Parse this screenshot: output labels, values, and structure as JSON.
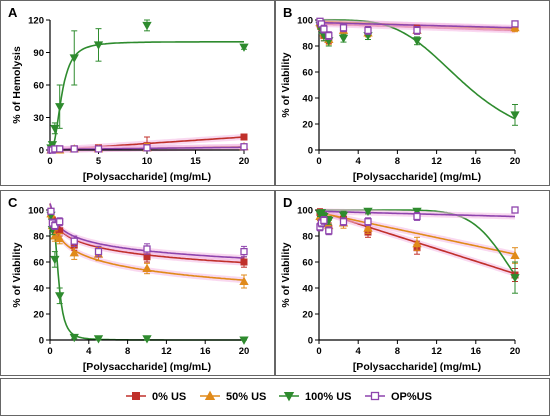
{
  "colors": {
    "us0": "#c0302b",
    "us50": "#e08a1a",
    "us100": "#2e8b2e",
    "op": "#8e44ad",
    "band": "#f4b8e4"
  },
  "legend": [
    {
      "key": "us0",
      "label": "0% US",
      "marker": "square"
    },
    {
      "key": "us50",
      "label": "50% US",
      "marker": "triangle-up"
    },
    {
      "key": "us100",
      "label": "100% US",
      "marker": "triangle-down"
    },
    {
      "key": "op",
      "label": "OP%US",
      "marker": "open-square"
    }
  ],
  "chart_data": [
    {
      "panel": "A",
      "type": "scatter",
      "xlabel": "[Polysaccharide] (mg/mL)",
      "ylabel": "% of Hemolysis",
      "xlim": [
        0,
        20
      ],
      "ylim": [
        0,
        120
      ],
      "xticks": [
        0,
        5,
        10,
        15,
        20
      ],
      "yticks": [
        0,
        30,
        60,
        90,
        120
      ],
      "series": [
        {
          "name": "0% US",
          "key": "us0",
          "x": [
            0.1,
            0.25,
            0.5,
            1,
            2.5,
            5,
            10,
            20
          ],
          "y": [
            0,
            0,
            0,
            1,
            1,
            2,
            4,
            12
          ],
          "err": [
            0,
            0,
            0,
            1,
            1,
            1,
            8,
            2
          ],
          "fit": {
            "kind": "linear",
            "slope": 0.6,
            "intercept": 0
          }
        },
        {
          "name": "50% US",
          "key": "us50",
          "x": [
            0.1,
            0.25,
            0.5,
            1,
            2.5,
            5,
            10,
            20
          ],
          "y": [
            0,
            0,
            0,
            0,
            1,
            1,
            2,
            3
          ],
          "err": [
            0,
            0,
            0,
            1,
            1,
            1,
            4,
            1
          ],
          "fit": {
            "kind": "linear",
            "slope": 0.15,
            "intercept": 0
          }
        },
        {
          "name": "100% US",
          "key": "us100",
          "x": [
            0.1,
            0.25,
            0.5,
            1,
            2.5,
            5,
            10,
            20
          ],
          "y": [
            2,
            5,
            20,
            40,
            85,
            97,
            115,
            95
          ],
          "err": [
            1,
            2,
            5,
            20,
            25,
            15,
            5,
            2
          ],
          "fit": {
            "kind": "hill",
            "top": 100,
            "ec50": 1.2,
            "n": 2.5
          }
        },
        {
          "name": "OP%US",
          "key": "op",
          "x": [
            0.1,
            0.25,
            0.5,
            1,
            2.5,
            5,
            10,
            20
          ],
          "y": [
            0,
            0,
            1,
            1,
            1,
            1,
            2,
            3
          ],
          "err": [
            0,
            0,
            0,
            0,
            1,
            1,
            1,
            1
          ],
          "fit": {
            "kind": "linear",
            "slope": 0.1,
            "intercept": 0.5
          }
        }
      ]
    },
    {
      "panel": "B",
      "type": "scatter",
      "xlabel": "[Polysaccharide] (mg/mL)",
      "ylabel": "% of Viability",
      "xlim": [
        0,
        20
      ],
      "ylim": [
        0,
        100
      ],
      "xticks": [
        0,
        4,
        8,
        12,
        16,
        20
      ],
      "yticks": [
        0,
        20,
        40,
        60,
        80,
        100
      ],
      "series": [
        {
          "name": "0% US",
          "key": "us0",
          "x": [
            0.1,
            0.25,
            0.5,
            1,
            2.5,
            5,
            10,
            20
          ],
          "y": [
            97,
            95,
            88,
            86,
            93,
            91,
            93,
            96
          ],
          "err": [
            3,
            3,
            4,
            4,
            3,
            3,
            3,
            3
          ],
          "fit": {
            "kind": "linear",
            "slope": -0.25,
            "intercept": 97
          }
        },
        {
          "name": "50% US",
          "key": "us50",
          "x": [
            0.1,
            0.25,
            0.5,
            1,
            2.5,
            5,
            10,
            20
          ],
          "y": [
            98,
            96,
            90,
            85,
            92,
            90,
            92,
            94
          ],
          "err": [
            3,
            3,
            4,
            4,
            3,
            3,
            3,
            3
          ],
          "fit": {
            "kind": "linear",
            "slope": -0.3,
            "intercept": 99
          }
        },
        {
          "name": "100% US",
          "key": "us100",
          "x": [
            0.1,
            0.25,
            0.5,
            1,
            2.5,
            5,
            10,
            20
          ],
          "y": [
            96,
            93,
            88,
            84,
            86,
            88,
            84,
            27
          ],
          "err": [
            3,
            3,
            4,
            4,
            3,
            3,
            3,
            8
          ],
          "fit": {
            "kind": "logistic_down",
            "top": 100,
            "bottom": 0,
            "ec50": 15,
            "n": 4
          }
        },
        {
          "name": "OP%US",
          "key": "op",
          "x": [
            0.1,
            0.25,
            0.5,
            1,
            2.5,
            5,
            10,
            20
          ],
          "y": [
            99,
            97,
            93,
            88,
            94,
            92,
            92,
            97
          ],
          "err": [
            2,
            2,
            3,
            3,
            3,
            3,
            3,
            2
          ],
          "fit": {
            "kind": "linear",
            "slope": -0.2,
            "intercept": 98
          }
        }
      ]
    },
    {
      "panel": "C",
      "type": "scatter",
      "xlabel": "[Polysaccharide] (mg/mL)",
      "ylabel": "% of Viability",
      "xlim": [
        0,
        20
      ],
      "ylim": [
        0,
        100
      ],
      "xticks": [
        0,
        4,
        8,
        12,
        16,
        20
      ],
      "yticks": [
        0,
        20,
        40,
        60,
        80,
        100
      ],
      "series": [
        {
          "name": "0% US",
          "key": "us0",
          "x": [
            0.1,
            0.25,
            0.5,
            1,
            2.5,
            5,
            10,
            20
          ],
          "y": [
            98,
            92,
            85,
            84,
            73,
            68,
            64,
            60
          ],
          "err": [
            3,
            3,
            3,
            4,
            4,
            4,
            4,
            4
          ],
          "fit": {
            "kind": "log",
            "a": 85,
            "b": -8.5
          }
        },
        {
          "name": "50% US",
          "key": "us50",
          "x": [
            0.1,
            0.25,
            0.5,
            1,
            2.5,
            5,
            10,
            20
          ],
          "y": [
            97,
            88,
            80,
            78,
            67,
            66,
            55,
            45
          ],
          "err": [
            3,
            3,
            4,
            4,
            5,
            5,
            4,
            5
          ],
          "fit": {
            "kind": "log",
            "a": 79,
            "b": -11
          }
        },
        {
          "name": "100% US",
          "key": "us100",
          "x": [
            0.1,
            0.25,
            0.5,
            1,
            2.5,
            5,
            10,
            20
          ],
          "y": [
            96,
            85,
            62,
            34,
            2,
            1,
            1,
            0
          ],
          "err": [
            3,
            4,
            6,
            6,
            1,
            1,
            1,
            1
          ],
          "fit": {
            "kind": "logistic_down",
            "top": 100,
            "bottom": 0,
            "ec50": 0.85,
            "n": 3
          }
        },
        {
          "name": "OP%US",
          "key": "op",
          "x": [
            0.1,
            0.25,
            0.5,
            1,
            2.5,
            5,
            10,
            20
          ],
          "y": [
            99,
            90,
            88,
            91,
            76,
            68,
            70,
            68
          ],
          "err": [
            2,
            3,
            3,
            3,
            4,
            4,
            4,
            4
          ],
          "fit": {
            "kind": "log",
            "a": 87,
            "b": -8
          }
        }
      ]
    },
    {
      "panel": "D",
      "type": "scatter",
      "xlabel": "[Polysaccharide] (mg/mL)",
      "ylabel": "% of Viability",
      "xlim": [
        0,
        20
      ],
      "ylim": [
        0,
        100
      ],
      "xticks": [
        0,
        4,
        8,
        12,
        16,
        20
      ],
      "yticks": [
        0,
        20,
        40,
        60,
        80,
        100
      ],
      "series": [
        {
          "name": "0% US",
          "key": "us0",
          "x": [
            0.1,
            0.25,
            0.5,
            1,
            2.5,
            5,
            10,
            20
          ],
          "y": [
            98,
            96,
            94,
            86,
            93,
            83,
            71,
            50
          ],
          "err": [
            3,
            3,
            3,
            4,
            4,
            4,
            5,
            5
          ],
          "fit": {
            "kind": "linear",
            "slope": -2.4,
            "intercept": 99
          }
        },
        {
          "name": "50% US",
          "key": "us50",
          "x": [
            0.1,
            0.25,
            0.5,
            1,
            2.5,
            5,
            10,
            20
          ],
          "y": [
            95,
            94,
            90,
            88,
            90,
            86,
            74,
            65
          ],
          "err": [
            3,
            3,
            3,
            4,
            4,
            4,
            5,
            6
          ],
          "fit": {
            "kind": "linear",
            "slope": -1.6,
            "intercept": 98
          }
        },
        {
          "name": "100% US",
          "key": "us100",
          "x": [
            0.1,
            0.25,
            0.5,
            1,
            2.5,
            5,
            10,
            20
          ],
          "y": [
            97,
            98,
            95,
            92,
            96,
            99,
            99,
            48
          ],
          "err": [
            2,
            2,
            3,
            3,
            3,
            2,
            2,
            12
          ],
          "fit": {
            "kind": "logistic_down",
            "top": 100,
            "bottom": 0,
            "ec50": 20,
            "n": 9
          }
        },
        {
          "name": "OP%US",
          "key": "op",
          "x": [
            0.1,
            0.25,
            0.5,
            1,
            2.5,
            5,
            10,
            20
          ],
          "y": [
            87,
            90,
            92,
            84,
            91,
            91,
            95,
            100
          ],
          "err": [
            3,
            3,
            3,
            3,
            3,
            3,
            3,
            2
          ],
          "fit": {
            "kind": "linear",
            "slope": -0.2,
            "intercept": 99
          }
        }
      ]
    }
  ]
}
